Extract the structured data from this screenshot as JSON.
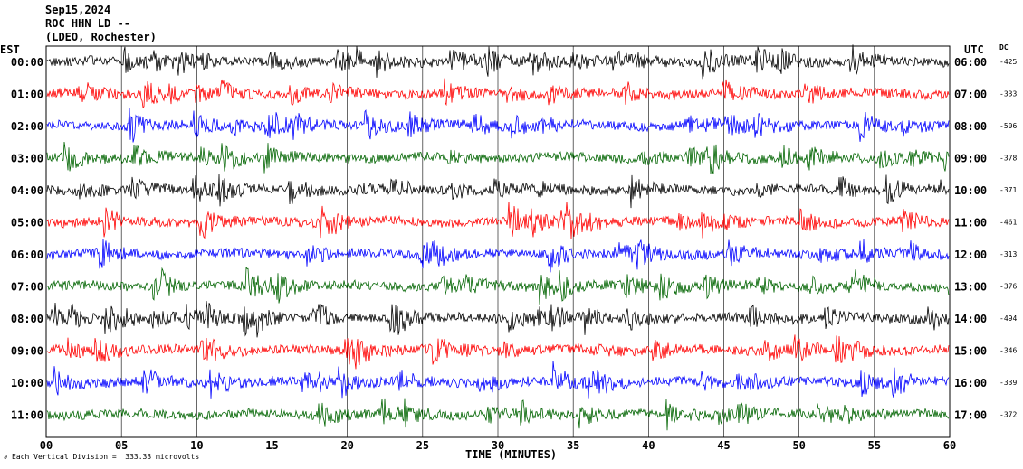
{
  "header": {
    "date": "Sep15,2024",
    "station": "ROC HHN LD --",
    "network": "(LDEO, Rochester)"
  },
  "footer": {
    "scale_note": "Each Vertical Division =  333.33 microvolts"
  },
  "chart_data": {
    "type": "line",
    "title": "",
    "xlabel": "TIME (MINUTES)",
    "x_range": [
      0,
      60
    ],
    "x_ticks": [
      "00",
      "05",
      "10",
      "15",
      "20",
      "25",
      "30",
      "35",
      "40",
      "45",
      "50",
      "55",
      "60"
    ],
    "left_axis_label": "EST",
    "right_axis_label": "UTC",
    "dc_label": "DC",
    "grid": true,
    "trace_colors": [
      "#000000",
      "#ff0000",
      "#0000ff",
      "#006400"
    ],
    "rows": [
      {
        "est": "00:00",
        "utc": "06:00",
        "dc": "-425"
      },
      {
        "est": "01:00",
        "utc": "07:00",
        "dc": "-333"
      },
      {
        "est": "02:00",
        "utc": "08:00",
        "dc": "-506"
      },
      {
        "est": "03:00",
        "utc": "09:00",
        "dc": "-378"
      },
      {
        "est": "04:00",
        "utc": "10:00",
        "dc": "-371"
      },
      {
        "est": "05:00",
        "utc": "11:00",
        "dc": "-461"
      },
      {
        "est": "06:00",
        "utc": "12:00",
        "dc": "-313"
      },
      {
        "est": "07:00",
        "utc": "13:00",
        "dc": "-376"
      },
      {
        "est": "08:00",
        "utc": "14:00",
        "dc": "-494"
      },
      {
        "est": "09:00",
        "utc": "15:00",
        "dc": "-346"
      },
      {
        "est": "10:00",
        "utc": "16:00",
        "dc": "-339"
      },
      {
        "est": "11:00",
        "utc": "17:00",
        "dc": "-372"
      }
    ]
  }
}
